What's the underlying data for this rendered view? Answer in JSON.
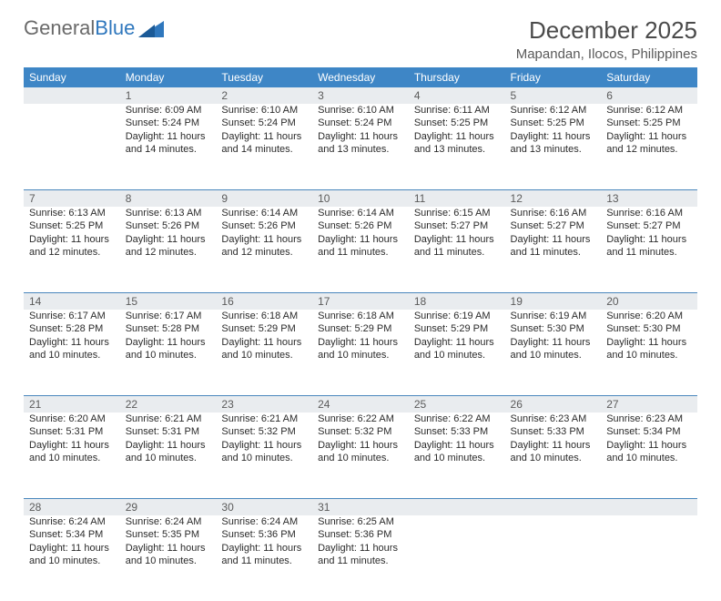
{
  "brand": {
    "name_a": "General",
    "name_b": "Blue"
  },
  "header": {
    "title": "December 2025",
    "location": "Mapandan, Ilocos, Philippines"
  },
  "style": {
    "header_bg": "#3e86c6",
    "header_fg": "#ffffff",
    "daynum_bg": "#e9ecef",
    "rule_color": "#4a87bd",
    "title_fontsize": 26,
    "location_fontsize": 15,
    "cell_fontsize": 11
  },
  "weekdays": [
    "Sunday",
    "Monday",
    "Tuesday",
    "Wednesday",
    "Thursday",
    "Friday",
    "Saturday"
  ],
  "weeks": [
    {
      "nums": [
        "",
        "1",
        "2",
        "3",
        "4",
        "5",
        "6"
      ],
      "cells": [
        {
          "sunrise": "",
          "sunset": "",
          "daylight": ""
        },
        {
          "sunrise": "Sunrise: 6:09 AM",
          "sunset": "Sunset: 5:24 PM",
          "daylight": "Daylight: 11 hours and 14 minutes."
        },
        {
          "sunrise": "Sunrise: 6:10 AM",
          "sunset": "Sunset: 5:24 PM",
          "daylight": "Daylight: 11 hours and 14 minutes."
        },
        {
          "sunrise": "Sunrise: 6:10 AM",
          "sunset": "Sunset: 5:24 PM",
          "daylight": "Daylight: 11 hours and 13 minutes."
        },
        {
          "sunrise": "Sunrise: 6:11 AM",
          "sunset": "Sunset: 5:25 PM",
          "daylight": "Daylight: 11 hours and 13 minutes."
        },
        {
          "sunrise": "Sunrise: 6:12 AM",
          "sunset": "Sunset: 5:25 PM",
          "daylight": "Daylight: 11 hours and 13 minutes."
        },
        {
          "sunrise": "Sunrise: 6:12 AM",
          "sunset": "Sunset: 5:25 PM",
          "daylight": "Daylight: 11 hours and 12 minutes."
        }
      ]
    },
    {
      "nums": [
        "7",
        "8",
        "9",
        "10",
        "11",
        "12",
        "13"
      ],
      "cells": [
        {
          "sunrise": "Sunrise: 6:13 AM",
          "sunset": "Sunset: 5:25 PM",
          "daylight": "Daylight: 11 hours and 12 minutes."
        },
        {
          "sunrise": "Sunrise: 6:13 AM",
          "sunset": "Sunset: 5:26 PM",
          "daylight": "Daylight: 11 hours and 12 minutes."
        },
        {
          "sunrise": "Sunrise: 6:14 AM",
          "sunset": "Sunset: 5:26 PM",
          "daylight": "Daylight: 11 hours and 12 minutes."
        },
        {
          "sunrise": "Sunrise: 6:14 AM",
          "sunset": "Sunset: 5:26 PM",
          "daylight": "Daylight: 11 hours and 11 minutes."
        },
        {
          "sunrise": "Sunrise: 6:15 AM",
          "sunset": "Sunset: 5:27 PM",
          "daylight": "Daylight: 11 hours and 11 minutes."
        },
        {
          "sunrise": "Sunrise: 6:16 AM",
          "sunset": "Sunset: 5:27 PM",
          "daylight": "Daylight: 11 hours and 11 minutes."
        },
        {
          "sunrise": "Sunrise: 6:16 AM",
          "sunset": "Sunset: 5:27 PM",
          "daylight": "Daylight: 11 hours and 11 minutes."
        }
      ]
    },
    {
      "nums": [
        "14",
        "15",
        "16",
        "17",
        "18",
        "19",
        "20"
      ],
      "cells": [
        {
          "sunrise": "Sunrise: 6:17 AM",
          "sunset": "Sunset: 5:28 PM",
          "daylight": "Daylight: 11 hours and 10 minutes."
        },
        {
          "sunrise": "Sunrise: 6:17 AM",
          "sunset": "Sunset: 5:28 PM",
          "daylight": "Daylight: 11 hours and 10 minutes."
        },
        {
          "sunrise": "Sunrise: 6:18 AM",
          "sunset": "Sunset: 5:29 PM",
          "daylight": "Daylight: 11 hours and 10 minutes."
        },
        {
          "sunrise": "Sunrise: 6:18 AM",
          "sunset": "Sunset: 5:29 PM",
          "daylight": "Daylight: 11 hours and 10 minutes."
        },
        {
          "sunrise": "Sunrise: 6:19 AM",
          "sunset": "Sunset: 5:29 PM",
          "daylight": "Daylight: 11 hours and 10 minutes."
        },
        {
          "sunrise": "Sunrise: 6:19 AM",
          "sunset": "Sunset: 5:30 PM",
          "daylight": "Daylight: 11 hours and 10 minutes."
        },
        {
          "sunrise": "Sunrise: 6:20 AM",
          "sunset": "Sunset: 5:30 PM",
          "daylight": "Daylight: 11 hours and 10 minutes."
        }
      ]
    },
    {
      "nums": [
        "21",
        "22",
        "23",
        "24",
        "25",
        "26",
        "27"
      ],
      "cells": [
        {
          "sunrise": "Sunrise: 6:20 AM",
          "sunset": "Sunset: 5:31 PM",
          "daylight": "Daylight: 11 hours and 10 minutes."
        },
        {
          "sunrise": "Sunrise: 6:21 AM",
          "sunset": "Sunset: 5:31 PM",
          "daylight": "Daylight: 11 hours and 10 minutes."
        },
        {
          "sunrise": "Sunrise: 6:21 AM",
          "sunset": "Sunset: 5:32 PM",
          "daylight": "Daylight: 11 hours and 10 minutes."
        },
        {
          "sunrise": "Sunrise: 6:22 AM",
          "sunset": "Sunset: 5:32 PM",
          "daylight": "Daylight: 11 hours and 10 minutes."
        },
        {
          "sunrise": "Sunrise: 6:22 AM",
          "sunset": "Sunset: 5:33 PM",
          "daylight": "Daylight: 11 hours and 10 minutes."
        },
        {
          "sunrise": "Sunrise: 6:23 AM",
          "sunset": "Sunset: 5:33 PM",
          "daylight": "Daylight: 11 hours and 10 minutes."
        },
        {
          "sunrise": "Sunrise: 6:23 AM",
          "sunset": "Sunset: 5:34 PM",
          "daylight": "Daylight: 11 hours and 10 minutes."
        }
      ]
    },
    {
      "nums": [
        "28",
        "29",
        "30",
        "31",
        "",
        "",
        ""
      ],
      "cells": [
        {
          "sunrise": "Sunrise: 6:24 AM",
          "sunset": "Sunset: 5:34 PM",
          "daylight": "Daylight: 11 hours and 10 minutes."
        },
        {
          "sunrise": "Sunrise: 6:24 AM",
          "sunset": "Sunset: 5:35 PM",
          "daylight": "Daylight: 11 hours and 10 minutes."
        },
        {
          "sunrise": "Sunrise: 6:24 AM",
          "sunset": "Sunset: 5:36 PM",
          "daylight": "Daylight: 11 hours and 11 minutes."
        },
        {
          "sunrise": "Sunrise: 6:25 AM",
          "sunset": "Sunset: 5:36 PM",
          "daylight": "Daylight: 11 hours and 11 minutes."
        },
        {
          "sunrise": "",
          "sunset": "",
          "daylight": ""
        },
        {
          "sunrise": "",
          "sunset": "",
          "daylight": ""
        },
        {
          "sunrise": "",
          "sunset": "",
          "daylight": ""
        }
      ]
    }
  ]
}
